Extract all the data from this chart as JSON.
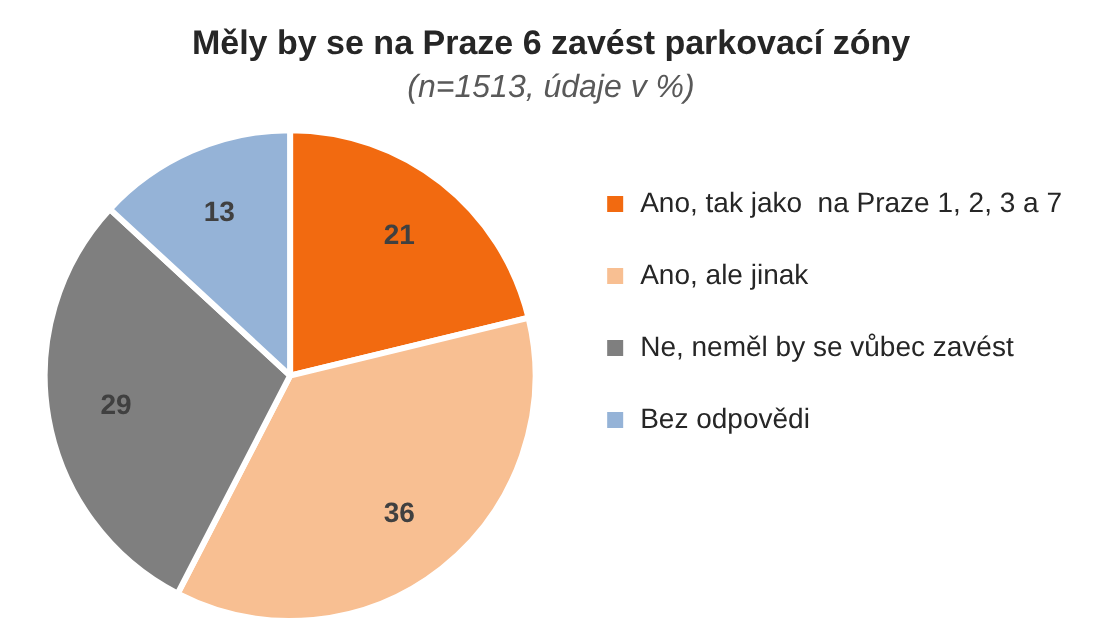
{
  "chart_data": {
    "type": "pie",
    "title": "Měly by se na Praze 6 zavést parkovací zóny",
    "subtitle": "(n=1513, údaje v %)",
    "categories": [
      "Ano, tak jako  na Praze 1, 2, 3 a 7",
      "Ano, ale jinak",
      "Ne, neměl by se vůbec zavést",
      "Bez odpovědi"
    ],
    "values": [
      21,
      36,
      29,
      13
    ],
    "colors": [
      "#f26a10",
      "#f8bf92",
      "#7f7f7f",
      "#95b3d7"
    ],
    "data_labels": true,
    "legend": "right"
  }
}
